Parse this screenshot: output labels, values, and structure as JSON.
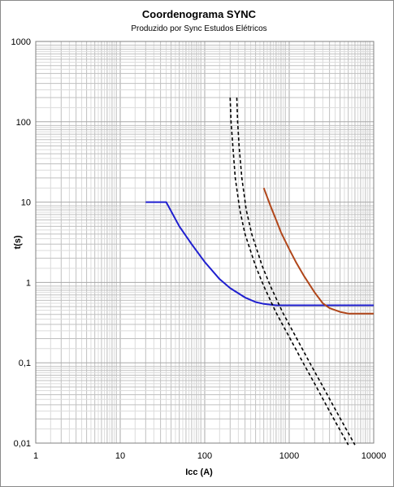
{
  "chart_data": {
    "type": "line",
    "title": "Coordenograma SYNC",
    "subtitle": "Produzido por Sync Estudos Elétricos",
    "xlabel": "Icc (A)",
    "ylabel": "t(s)",
    "xscale": "log",
    "yscale": "log",
    "xlim": [
      1,
      10000
    ],
    "ylim": [
      0.01,
      1000
    ],
    "grid": true,
    "x_ticks": [
      "1",
      "10",
      "100",
      "1000",
      "10000"
    ],
    "y_ticks": [
      "1000",
      "100",
      "10",
      "1",
      "0,1",
      "0,01"
    ],
    "colors": {
      "blue": "#1f1fcf",
      "brown": "#b0461a",
      "black": "#000000",
      "grid_minor": "#c0c0c0",
      "grid_major": "#a8a8a8"
    },
    "series": [
      {
        "color": "#1f1fcf",
        "style": "solid",
        "x": [
          20,
          35,
          50,
          70,
          100,
          150,
          200,
          300,
          400,
          500,
          700,
          1000,
          2000,
          5000,
          10000
        ],
        "y": [
          10,
          10,
          5,
          3,
          1.8,
          1.1,
          0.85,
          0.65,
          0.57,
          0.54,
          0.52,
          0.52,
          0.52,
          0.52,
          0.52
        ]
      },
      {
        "color": "#b0461a",
        "style": "solid",
        "x": [
          500,
          600,
          700,
          800,
          1000,
          1200,
          1500,
          2000,
          2500,
          3000,
          4000,
          5000,
          7000,
          10000
        ],
        "y": [
          15,
          9,
          6,
          4.2,
          2.6,
          1.8,
          1.2,
          0.75,
          0.55,
          0.48,
          0.43,
          0.41,
          0.41,
          0.41
        ]
      },
      {
        "color": "#000000",
        "style": "dashed",
        "x": [
          200,
          205,
          215,
          230,
          260,
          300,
          400,
          500,
          700,
          1000,
          1500,
          2000,
          3000,
          4000,
          5000
        ],
        "y": [
          200,
          100,
          50,
          20,
          8,
          4,
          1.6,
          0.9,
          0.42,
          0.21,
          0.095,
          0.055,
          0.025,
          0.0145,
          0.0095
        ]
      },
      {
        "color": "#000000",
        "style": "dashed",
        "x": [
          240,
          245,
          255,
          275,
          310,
          360,
          480,
          600,
          840,
          1200,
          1800,
          2400,
          3600,
          4800,
          6000
        ],
        "y": [
          200,
          100,
          50,
          20,
          8,
          4,
          1.6,
          0.9,
          0.42,
          0.21,
          0.095,
          0.055,
          0.025,
          0.0145,
          0.0095
        ]
      }
    ]
  }
}
